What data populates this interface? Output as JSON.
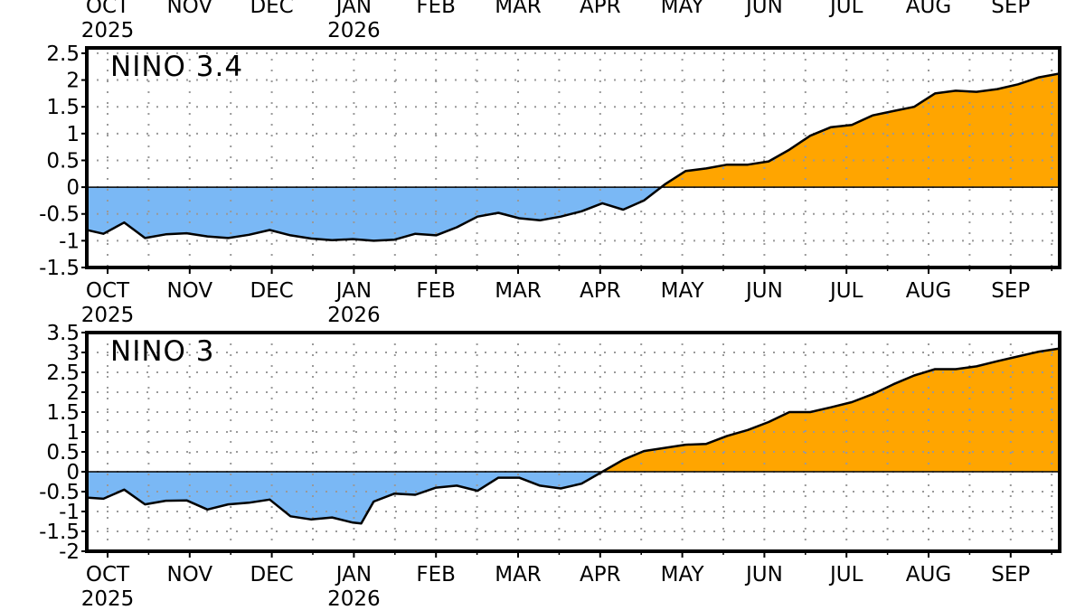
{
  "top_month_labels": [
    "OCT",
    "NOV",
    "DEC",
    "JAN",
    "FEB",
    "MAR",
    "APR",
    "MAY",
    "JUN",
    "JUL",
    "AUG",
    "SEP"
  ],
  "top_year_labels": [
    "2025",
    "2026"
  ],
  "colors": {
    "positive_fill": "#ffa500",
    "negative_fill": "#7ab8f5",
    "line": "#000000",
    "grid": "#999999",
    "frame": "#000000"
  },
  "chart_data": [
    {
      "type": "area",
      "title": "NINO 3.4",
      "x_labels": [
        "OCT",
        "NOV",
        "DEC",
        "JAN",
        "FEB",
        "MAR",
        "APR",
        "MAY",
        "JUN",
        "JUL",
        "AUG",
        "SEP"
      ],
      "x_year_labels": [
        "2025",
        "2026"
      ],
      "x_unit": "months since Oct 2025",
      "xlim": [
        -0.2,
        11.5
      ],
      "ylim": [
        -1.5,
        2.6
      ],
      "y_ticks": [
        "2.5",
        "2",
        "1.5",
        "1",
        "0.5",
        "0",
        "-0.5",
        "-1",
        "-1.5"
      ],
      "grid": true,
      "x": [
        -0.2,
        0.0,
        0.25,
        0.5,
        0.75,
        1.0,
        1.25,
        1.5,
        1.75,
        2.0,
        2.25,
        2.5,
        2.75,
        3.0,
        3.25,
        3.5,
        3.75,
        4.0,
        4.25,
        4.5,
        4.75,
        5.0,
        5.25,
        5.5,
        5.75,
        6.0,
        6.25,
        6.5,
        6.75,
        7.0,
        7.25,
        7.5,
        7.75,
        8.0,
        8.25,
        8.5,
        8.75,
        9.0,
        9.25,
        9.5,
        9.75,
        10.0,
        10.25,
        10.5,
        10.75,
        11.0,
        11.25,
        11.5
      ],
      "values": [
        -0.8,
        -0.87,
        -0.66,
        -0.95,
        -0.88,
        -0.86,
        -0.92,
        -0.95,
        -0.89,
        -0.8,
        -0.9,
        -0.96,
        -0.99,
        -0.97,
        -1.0,
        -0.98,
        -0.87,
        -0.9,
        -0.75,
        -0.55,
        -0.48,
        -0.58,
        -0.62,
        -0.55,
        -0.45,
        -0.3,
        -0.42,
        -0.25,
        0.05,
        0.3,
        0.35,
        0.42,
        0.42,
        0.48,
        0.7,
        0.96,
        1.12,
        1.16,
        1.34,
        1.42,
        1.5,
        1.75,
        1.8,
        1.78,
        1.83,
        1.92,
        2.05,
        2.12
      ]
    },
    {
      "type": "area",
      "title": "NINO 3",
      "x_labels": [
        "OCT",
        "NOV",
        "DEC",
        "JAN",
        "FEB",
        "MAR",
        "APR",
        "MAY",
        "JUN",
        "JUL",
        "AUG",
        "SEP"
      ],
      "x_year_labels": [
        "2025",
        "2026"
      ],
      "x_unit": "months since Oct 2025",
      "xlim": [
        -0.2,
        11.5
      ],
      "ylim": [
        -2,
        3.5
      ],
      "y_ticks": [
        "3.5",
        "3",
        "2.5",
        "2",
        "1.5",
        "1",
        "0.5",
        "0",
        "-0.5",
        "-1",
        "-1.5",
        "-2"
      ],
      "grid": true,
      "x": [
        -0.2,
        0.0,
        0.25,
        0.5,
        0.75,
        1.0,
        1.25,
        1.5,
        1.75,
        2.0,
        2.25,
        2.5,
        2.75,
        3.0,
        3.1,
        3.25,
        3.5,
        3.75,
        4.0,
        4.25,
        4.5,
        4.75,
        5.0,
        5.25,
        5.5,
        5.75,
        6.0,
        6.25,
        6.5,
        6.75,
        7.0,
        7.25,
        7.5,
        7.75,
        8.0,
        8.25,
        8.5,
        8.75,
        9.0,
        9.25,
        9.5,
        9.75,
        10.0,
        10.25,
        10.5,
        10.75,
        11.0,
        11.25,
        11.5
      ],
      "values": [
        -0.65,
        -0.68,
        -0.45,
        -0.82,
        -0.73,
        -0.72,
        -0.95,
        -0.82,
        -0.78,
        -0.7,
        -1.12,
        -1.2,
        -1.15,
        -1.28,
        -1.3,
        -0.75,
        -0.55,
        -0.58,
        -0.4,
        -0.35,
        -0.48,
        -0.15,
        -0.15,
        -0.35,
        -0.42,
        -0.3,
        0.0,
        0.3,
        0.52,
        0.6,
        0.68,
        0.7,
        0.9,
        1.05,
        1.25,
        1.5,
        1.5,
        1.62,
        1.75,
        1.95,
        2.2,
        2.42,
        2.58,
        2.58,
        2.65,
        2.78,
        2.9,
        3.02,
        3.1
      ]
    }
  ]
}
